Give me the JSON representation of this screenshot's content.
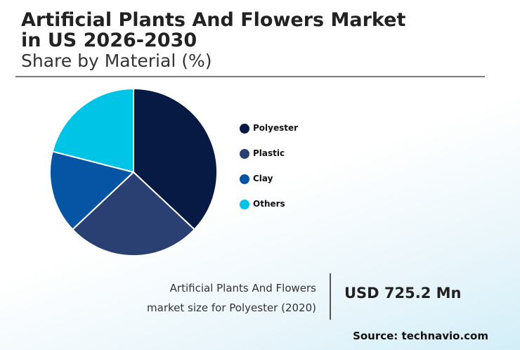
{
  "header": {
    "title": "Artificial Plants And Flowers Market in US 2026-2030",
    "subtitle": "Share by Material (%)"
  },
  "chart_data": {
    "type": "pie",
    "categories": [
      "Polyester",
      "Plastic",
      "Clay",
      "Others"
    ],
    "values": [
      37,
      26,
      16,
      21
    ],
    "colors": [
      "#061a44",
      "#2a3f72",
      "#0654a4",
      "#00c4e6"
    ],
    "legend_position": "right"
  },
  "highlight": {
    "caption_line1": "Artificial Plants And Flowers",
    "caption_line2": "market size for Polyester (2020)",
    "value": "USD 725.2 Mn"
  },
  "footer": {
    "source": "Source: technavio.com"
  }
}
